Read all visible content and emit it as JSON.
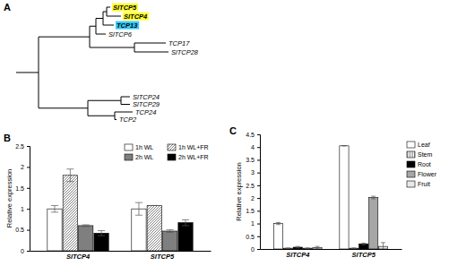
{
  "chart_data": [
    {
      "type": "tree",
      "title": "A",
      "tree": {
        "length": 2.5,
        "children": [
          {
            "length": 5.7,
            "children": [
              {
                "length": 0.7,
                "children": [
                  {
                    "length": 0.8,
                    "children": [
                      {
                        "length": 0.4,
                        "children": [
                          {
                            "label": "SlTCP5",
                            "length": 0.4,
                            "color": "#ffff33"
                          },
                          {
                            "label": "SlTCP4",
                            "length": 1.6,
                            "color": "#ffff33"
                          }
                        ]
                      },
                      {
                        "label": "TCP13",
                        "length": 1.2,
                        "color": "#33ccff"
                      }
                    ]
                  },
                  {
                    "label": "SlTCP6",
                    "length": 1.1
                  }
                ]
              },
              {
                "length": 5.0,
                "children": [
                  {
                    "label": "TCP17",
                    "length": 3.5
                  },
                  {
                    "label": "SlTCP28",
                    "length": 3.8
                  }
                ]
              }
            ]
          },
          {
            "length": 5.5,
            "children": [
              {
                "length": 3.7,
                "children": [
                  {
                    "label": "SlTCP24",
                    "length": 1.0
                  },
                  {
                    "label": "SlTCP29",
                    "length": 1.0
                  }
                ]
              },
              {
                "length": 3.0,
                "children": [
                  {
                    "label": "TCP24",
                    "length": 2.0
                  },
                  {
                    "label": "TCP2",
                    "length": 0.2
                  }
                ]
              }
            ]
          }
        ]
      }
    },
    {
      "type": "bar",
      "title": "B",
      "y_label": "Relative expression",
      "categories": [
        "SlTCP4",
        "SlTCP5"
      ],
      "series": [
        {
          "name": "1h WL",
          "color": "#ffffff",
          "values": [
            1.0,
            1.0
          ],
          "errors": [
            0.08,
            0.15
          ]
        },
        {
          "name": "1h WL+FR",
          "color": "#ffffff",
          "line_style": "hatched",
          "values": [
            1.8,
            1.08
          ],
          "errors": [
            0.15,
            0.0
          ]
        },
        {
          "name": "2h WL",
          "color": "#7f7f7f",
          "values": [
            0.6,
            0.47
          ],
          "errors": [
            0.02,
            0.03
          ]
        },
        {
          "name": "2h WL+FR",
          "color": "#000000",
          "values": [
            0.42,
            0.67
          ],
          "errors": [
            0.06,
            0.07
          ]
        }
      ],
      "ylim": [
        0,
        2.5
      ],
      "yticks": [
        0,
        0.5,
        1,
        1.5,
        2,
        2.5
      ],
      "legend": "top-right"
    },
    {
      "type": "bar",
      "title": "C",
      "y_label": "Relative expression",
      "categories": [
        "SlTCP4",
        "SlTCP5"
      ],
      "series": [
        {
          "name": "Leaf",
          "color": "#ffffff",
          "values": [
            1.0,
            4.05
          ],
          "errors": [
            0.04,
            0.0
          ]
        },
        {
          "name": "Stem",
          "color": "#ffffff",
          "line_style": "striped",
          "values": [
            0.03,
            0.03
          ],
          "errors": [
            0.01,
            0.01
          ]
        },
        {
          "name": "Root",
          "color": "#000000",
          "values": [
            0.07,
            0.2
          ],
          "errors": [
            0.03,
            0.03
          ]
        },
        {
          "name": "Flower",
          "color": "#a6a6a6",
          "values": [
            0.03,
            2.02
          ],
          "errors": [
            0.01,
            0.05
          ]
        },
        {
          "name": "Fruit",
          "color": "#ffffff",
          "line_style": "dotted",
          "values": [
            0.05,
            0.1
          ],
          "errors": [
            0.05,
            0.15
          ]
        }
      ],
      "ylim": [
        0,
        4.5
      ],
      "yticks": [
        0,
        0.5,
        1,
        1.5,
        2,
        2.5,
        3,
        3.5,
        4,
        4.5
      ],
      "legend": "right"
    }
  ]
}
